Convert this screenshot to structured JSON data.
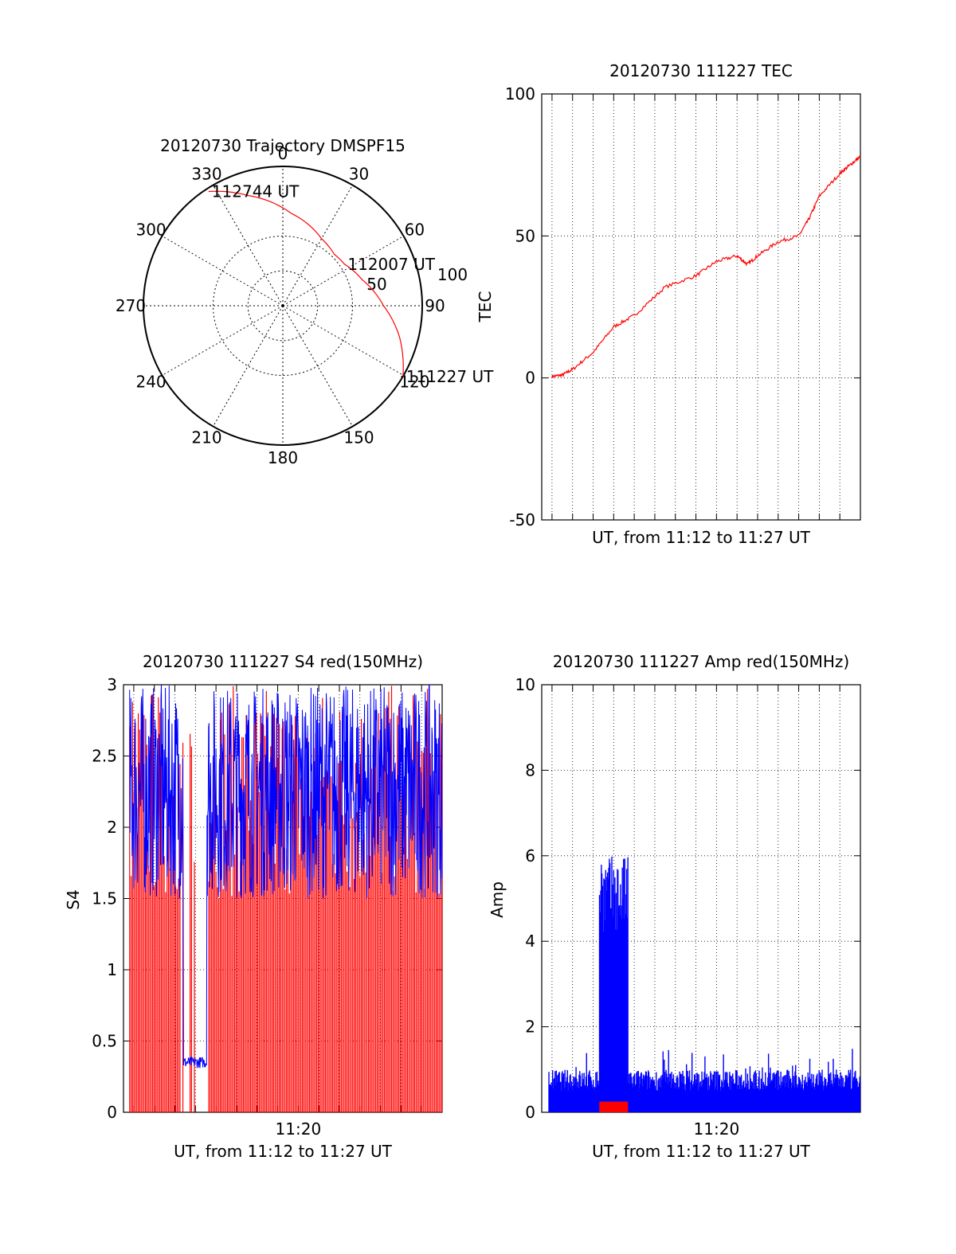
{
  "colors": {
    "trace_primary": "#ff0000",
    "trace_secondary": "#0000ff",
    "axes": "#000000",
    "grid": "#000000"
  },
  "chart_data": [
    {
      "id": "trajectory",
      "type": "polar",
      "title": "20120730 Trajectory DMSPF15",
      "angle_labels": [
        "0",
        "30",
        "60",
        "90",
        "120",
        "150",
        "180",
        "210",
        "240",
        "270",
        "300",
        "330"
      ],
      "radius_labels": [
        "50",
        "100"
      ],
      "track": [
        {
          "az": 120.5,
          "el": 0
        },
        {
          "az": 105,
          "el": 12
        },
        {
          "az": 90,
          "el": 25
        },
        {
          "az": 72,
          "el": 36
        },
        {
          "az": 56,
          "el": 42
        },
        {
          "az": 45,
          "el": 43
        },
        {
          "az": 30,
          "el": 40
        },
        {
          "az": 5,
          "el": 30
        },
        {
          "az": -18,
          "el": 15
        },
        {
          "az": -33,
          "el": 2
        }
      ],
      "annotations": [
        {
          "text": "112744 UT",
          "az": -33,
          "el": 2
        },
        {
          "text": "112007 UT",
          "az": 56,
          "el": 42
        },
        {
          "text": "111227 UT",
          "az": 120.5,
          "el": 0
        }
      ]
    },
    {
      "id": "tec",
      "type": "line",
      "title": "20120730 111227 TEC",
      "xlabel": "UT, from 11:12 to 11:27 UT",
      "ylabel": "TEC",
      "ylim": [
        -50,
        100
      ],
      "yticks": [
        "100",
        "50",
        "0",
        "-50"
      ],
      "xlim_minutes": [
        11.5,
        27
      ],
      "grid": true,
      "series": [
        {
          "color": "#ff0000",
          "x_minutes": [
            12.0,
            12.5,
            13.0,
            14.0,
            15.0,
            16.0,
            17.5,
            19.0,
            20.0,
            21.0,
            21.5,
            22.0,
            23.0,
            24.0,
            24.5,
            25.0,
            26.0,
            26.5,
            27.0
          ],
          "values": [
            0.5,
            1,
            3,
            9,
            18,
            22,
            32,
            36,
            41,
            43,
            40,
            43,
            48,
            50,
            56,
            64,
            72,
            75,
            78
          ]
        }
      ]
    },
    {
      "id": "s4",
      "type": "line",
      "title": "20120730 111227 S4 red(150MHz)",
      "xlabel": "UT, from 11:12 to 11:27 UT",
      "ylabel": "S4",
      "ylim": [
        0,
        3
      ],
      "yticks": [
        "3",
        "2.5",
        "2",
        "1.5",
        "1",
        "0.5",
        "0"
      ],
      "xticks": [
        {
          "minutes": 20,
          "label": "11:20"
        }
      ],
      "xlim_minutes": [
        11.5,
        27
      ],
      "grid": true,
      "series": [
        {
          "color": "#ff0000",
          "description": "dense vertical spikes 0–3",
          "level_range": [
            0,
            3
          ]
        },
        {
          "color": "#0000ff",
          "description": "dense noise mostly 1.5–3, dip to ~0.35 near 11:14.5–11:15.5",
          "level_range": [
            1.5,
            3
          ],
          "dip_value": 0.35
        }
      ]
    },
    {
      "id": "amp",
      "type": "area",
      "title": "20120730 111227 Amp red(150MHz)",
      "xlabel": "UT, from 11:12 to 11:27 UT",
      "ylabel": "Amp",
      "ylim": [
        0,
        10
      ],
      "yticks": [
        "10",
        "8",
        "6",
        "4",
        "2",
        "0"
      ],
      "xticks": [
        {
          "minutes": 20,
          "label": "11:20"
        }
      ],
      "xlim_minutes": [
        11.5,
        27
      ],
      "grid": true,
      "series": [
        {
          "color": "#0000ff",
          "baseline": 0.7,
          "burst": {
            "from_minutes": 14.3,
            "to_minutes": 15.7,
            "level": 5.0,
            "peak": 6.9
          }
        },
        {
          "color": "#ff0000",
          "burst": {
            "from_minutes": 14.3,
            "to_minutes": 15.7,
            "level": 0.25
          }
        }
      ]
    }
  ]
}
